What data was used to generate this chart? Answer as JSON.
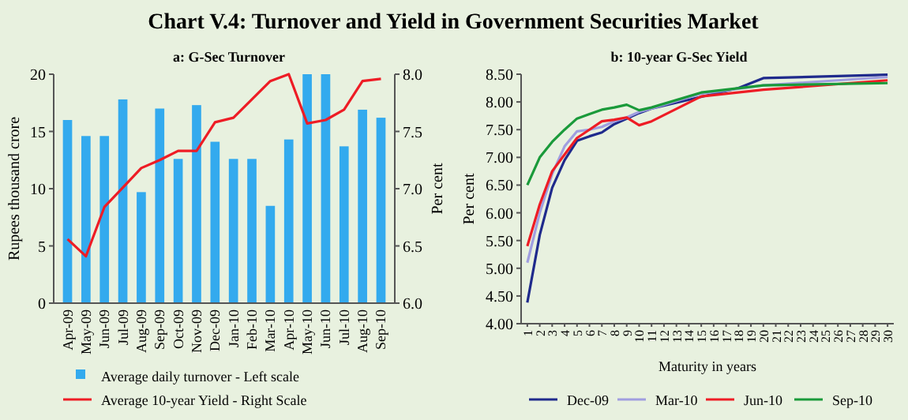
{
  "chart_data": [
    {
      "type": "bar",
      "title": "Chart V.4: Turnover and Yield in Government Securities Market",
      "subtitle": "a: G-Sec Turnover",
      "ylabel": "Rupees thousand crore",
      "y2label": "Per cent",
      "categories": [
        "Apr-09",
        "May-09",
        "Jun-09",
        "Jul-09",
        "Aug-09",
        "Sep-09",
        "Oct-09",
        "Nov-09",
        "Dec-09",
        "Jan-10",
        "Feb-10",
        "Mar-10",
        "Apr-10",
        "May-10",
        "Jun-10",
        "Jul-10",
        "Aug-10",
        "Sep-10"
      ],
      "series": [
        {
          "name": "Average daily  turnover - Left scale",
          "type": "bar",
          "color": "#33aaee",
          "values": [
            16,
            14.6,
            14.6,
            17.8,
            9.7,
            17,
            12.6,
            17.3,
            14.1,
            12.6,
            12.6,
            8.5,
            14.3,
            20,
            20,
            13.7,
            16.9,
            16.2
          ]
        },
        {
          "name": "Average 10-year Yield - Right Scale",
          "type": "line",
          "axis": "y2",
          "color": "#ee1c25",
          "values": [
            6.56,
            6.41,
            6.84,
            7.01,
            7.18,
            7.25,
            7.33,
            7.33,
            7.58,
            7.62,
            7.78,
            7.94,
            8.0,
            7.57,
            7.6,
            7.69,
            7.94,
            7.96
          ]
        }
      ],
      "ylim": [
        0,
        20
      ],
      "yticks": [
        0,
        5,
        10,
        15,
        20
      ],
      "y2lim": [
        6,
        8
      ],
      "y2ticks": [
        {
          "value": 6,
          "label": "6.0"
        },
        {
          "value": 6.5,
          "label": "6.5"
        },
        {
          "value": 7,
          "label": "7.0"
        },
        {
          "value": 7.5,
          "label": "7.5"
        },
        {
          "value": 8,
          "label": "8.0"
        }
      ],
      "legend": "bottom left",
      "grid": false
    },
    {
      "type": "line",
      "subtitle": "b: 10-year G-Sec Yield",
      "xlabel": "Maturity in years",
      "ylabel": "Per cent",
      "series": [
        {
          "name": "Dec-09",
          "color": "#1f2a8c",
          "x": [
            1,
            2,
            3,
            4,
            5,
            6,
            7,
            8,
            9,
            10,
            11,
            18,
            20,
            22,
            30
          ],
          "values": [
            4.38,
            5.6,
            6.45,
            6.95,
            7.3,
            7.38,
            7.45,
            7.6,
            7.7,
            7.8,
            7.88,
            8.25,
            8.43,
            8.44,
            8.49
          ]
        },
        {
          "name": "Mar-10",
          "color": "#a09ee0",
          "x": [
            1,
            2,
            3,
            4,
            5,
            6,
            7,
            8,
            9,
            10,
            11,
            15,
            20,
            30
          ],
          "values": [
            5.1,
            6.0,
            6.7,
            7.2,
            7.47,
            7.5,
            7.55,
            7.65,
            7.72,
            7.82,
            7.88,
            8.15,
            8.3,
            8.45
          ]
        },
        {
          "name": "Jun-10",
          "color": "#ee1c25",
          "x": [
            1,
            2,
            3,
            4,
            5,
            6,
            7,
            8,
            9,
            10,
            11,
            15,
            20,
            30
          ],
          "values": [
            5.4,
            6.15,
            6.75,
            7.05,
            7.35,
            7.5,
            7.65,
            7.68,
            7.72,
            7.58,
            7.65,
            8.1,
            8.22,
            8.39
          ]
        },
        {
          "name": "Sep-10",
          "color": "#1a9a3a",
          "x": [
            1,
            2,
            3,
            4,
            5,
            6,
            7,
            8,
            9,
            10,
            11,
            15,
            20,
            30
          ],
          "values": [
            6.5,
            7.0,
            7.28,
            7.5,
            7.7,
            7.78,
            7.86,
            7.9,
            7.95,
            7.85,
            7.9,
            8.17,
            8.3,
            8.34
          ]
        }
      ],
      "xlim": [
        0.5,
        30.5
      ],
      "xticks": [
        1,
        2,
        3,
        4,
        5,
        6,
        7,
        8,
        9,
        10,
        11,
        12,
        13,
        14,
        15,
        16,
        17,
        18,
        19,
        20,
        21,
        22,
        23,
        24,
        25,
        26,
        27,
        28,
        29,
        30
      ],
      "ylim": [
        4,
        8.5
      ],
      "yticks": [
        {
          "value": 4,
          "label": "4.00"
        },
        {
          "value": 4.5,
          "label": "4.50"
        },
        {
          "value": 5,
          "label": "5.00"
        },
        {
          "value": 5.5,
          "label": "5.50"
        },
        {
          "value": 6,
          "label": "6.00"
        },
        {
          "value": 6.5,
          "label": "6.50"
        },
        {
          "value": 7,
          "label": "7.00"
        },
        {
          "value": 7.5,
          "label": "7.50"
        },
        {
          "value": 8,
          "label": "8.00"
        },
        {
          "value": 8.5,
          "label": "8.50"
        }
      ],
      "legend": "bottom",
      "grid": false
    }
  ]
}
